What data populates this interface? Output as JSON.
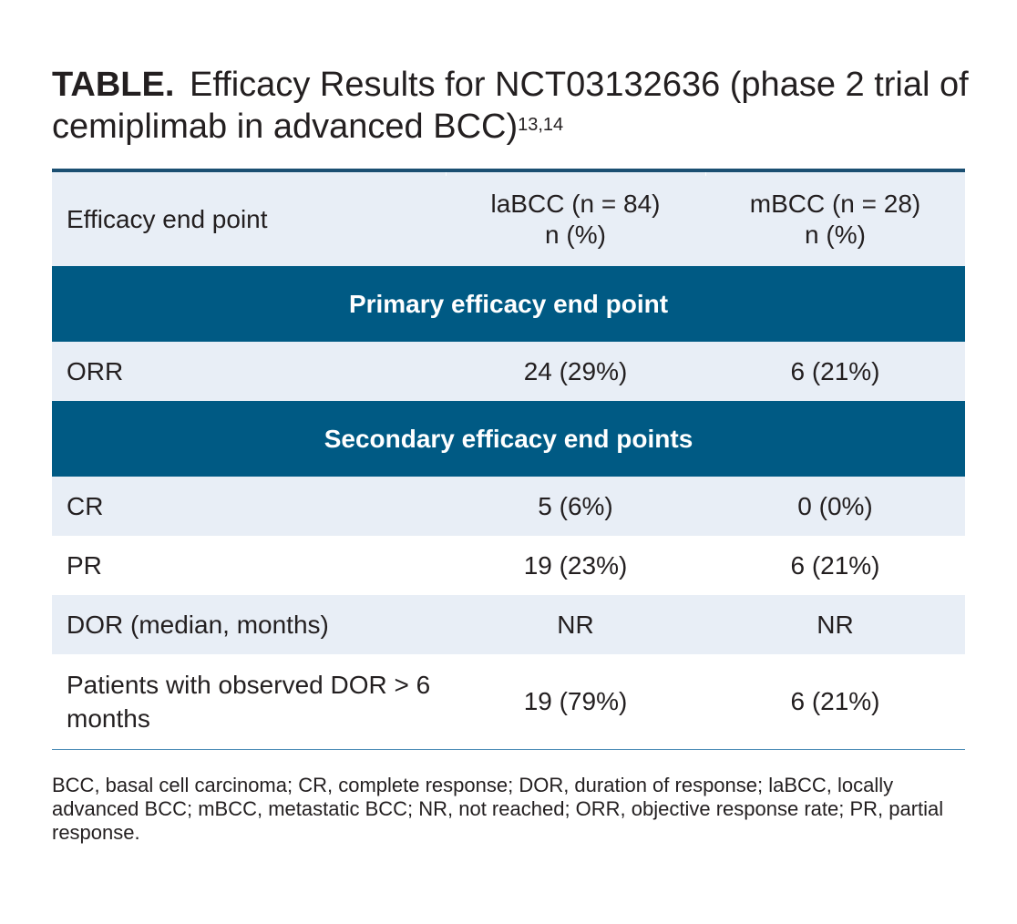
{
  "title": {
    "label": "TABLE.",
    "text": "Efficacy Results for NCT03132636 (phase 2 trial of cemiplimab in advanced BCC)",
    "refs": "13,14"
  },
  "table": {
    "headers": {
      "endpoint": "Efficacy end point",
      "col1_line1": "laBCC (n = 84)",
      "col1_line2": "n (%)",
      "col2_line1": "mBCC (n = 28)",
      "col2_line2": "n (%)"
    },
    "sections": [
      {
        "title": "Primary efficacy end point",
        "rows": [
          {
            "label": "ORR",
            "labcc": "24 (29%)",
            "mbcc": "6 (21%)"
          }
        ]
      },
      {
        "title": "Secondary efficacy end points",
        "rows": [
          {
            "label": "CR",
            "labcc": "5 (6%)",
            "mbcc": "0 (0%)"
          },
          {
            "label": "PR",
            "labcc": "19 (23%)",
            "mbcc": "6 (21%)"
          },
          {
            "label": "DOR (median, months)",
            "labcc": "NR",
            "mbcc": "NR"
          },
          {
            "label": "Patients with observed DOR > 6 months",
            "labcc": "19 (79%)",
            "mbcc": "6 (21%)"
          }
        ]
      }
    ]
  },
  "footnote": "BCC, basal cell carcinoma; CR, complete response; DOR, duration of response; laBCC, locally advanced BCC; mBCC, metastatic BCC; NR, not reached; ORR, objective response rate; PR, partial response.",
  "colors": {
    "header_bg": "#e8eef6",
    "section_bg": "#005a84",
    "top_rule": "#1b4f72"
  }
}
